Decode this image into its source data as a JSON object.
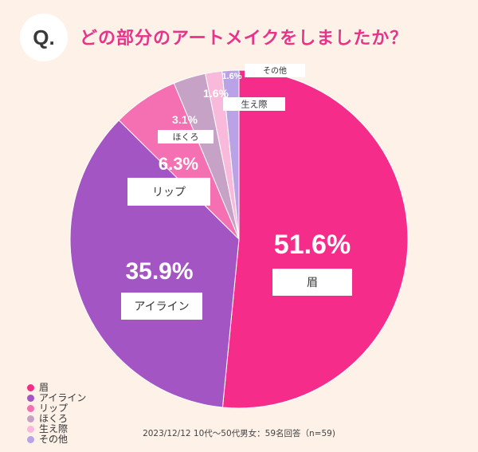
{
  "header": {
    "badge": "Q.",
    "title": "どの部分のアートメイクをしましたか？"
  },
  "chart_data": {
    "type": "pie",
    "categories": [
      "眉",
      "アイライン",
      "リップ",
      "ほくろ",
      "生え際",
      "その他"
    ],
    "values": [
      51.6,
      35.9,
      6.3,
      3.1,
      1.6,
      1.6
    ],
    "value_labels": [
      "51.6%",
      "35.9%",
      "6.3%",
      "3.1%",
      "1.6%",
      "1.6%"
    ],
    "colors": [
      "#f52c8a",
      "#a455c4",
      "#f570b2",
      "#c6a3c6",
      "#f9b9da",
      "#b9a3e6"
    ],
    "legend": "bottom-left"
  },
  "footnote": "2023/12/12  10代〜50代男女：59名回答（n=59)"
}
